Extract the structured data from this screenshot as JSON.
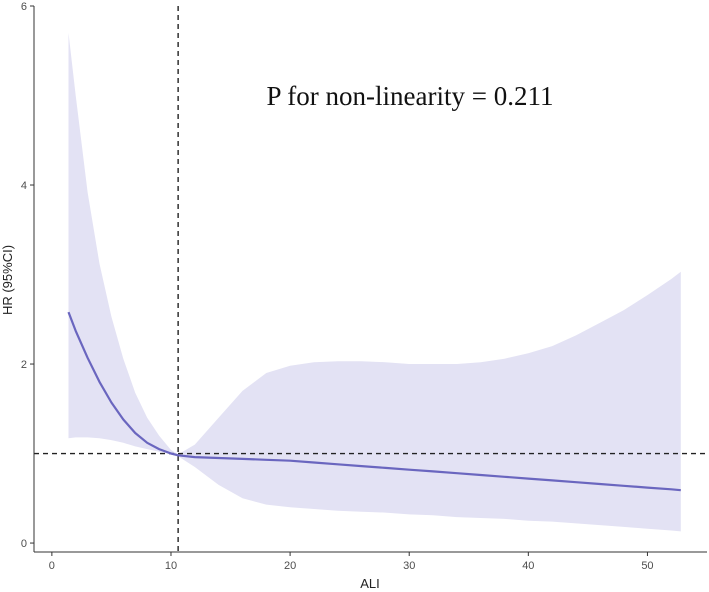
{
  "chart_data": {
    "type": "line",
    "title": "",
    "xlabel": "ALI",
    "ylabel": "HR (95%CI)",
    "xlim": [
      -1.5,
      55
    ],
    "ylim": [
      -0.1,
      6
    ],
    "xticks": [
      0,
      10,
      20,
      30,
      40,
      50
    ],
    "yticks": [
      0,
      2,
      4,
      6
    ],
    "grid": false,
    "annotation": "P for non-linearity = 0.211",
    "reference_lines": {
      "vertical_x": 10.6,
      "horizontal_y": 1
    },
    "colors": {
      "line": "#6a66bf",
      "band": "#e3e2f4",
      "reference": "#222222",
      "axis": "#333333"
    },
    "series": [
      {
        "x": [
          1.4,
          2,
          3,
          4,
          5,
          6,
          7,
          8,
          9,
          10,
          10.6,
          12,
          14,
          16,
          18,
          20,
          22,
          24,
          26,
          28,
          30,
          32,
          34,
          36,
          38,
          40,
          42,
          44,
          46,
          48,
          50,
          52,
          52.8
        ],
        "y": [
          2.58,
          2.37,
          2.07,
          1.8,
          1.57,
          1.38,
          1.23,
          1.12,
          1.05,
          1.0,
          0.98,
          0.96,
          0.95,
          0.94,
          0.93,
          0.92,
          0.9,
          0.88,
          0.86,
          0.84,
          0.82,
          0.8,
          0.78,
          0.76,
          0.74,
          0.72,
          0.7,
          0.68,
          0.66,
          0.64,
          0.62,
          0.6,
          0.59
        ],
        "lower": [
          1.17,
          1.18,
          1.18,
          1.17,
          1.15,
          1.12,
          1.08,
          1.05,
          1.02,
          0.99,
          0.97,
          0.85,
          0.65,
          0.5,
          0.43,
          0.4,
          0.38,
          0.36,
          0.35,
          0.34,
          0.32,
          0.31,
          0.29,
          0.28,
          0.27,
          0.25,
          0.24,
          0.22,
          0.2,
          0.18,
          0.16,
          0.14,
          0.13
        ],
        "upper": [
          5.7,
          5.0,
          3.92,
          3.12,
          2.53,
          2.06,
          1.68,
          1.4,
          1.2,
          1.04,
          0.99,
          1.1,
          1.4,
          1.7,
          1.9,
          1.98,
          2.02,
          2.03,
          2.03,
          2.02,
          2.0,
          2.0,
          2.0,
          2.02,
          2.06,
          2.12,
          2.2,
          2.32,
          2.46,
          2.6,
          2.77,
          2.95,
          3.03
        ]
      }
    ]
  }
}
